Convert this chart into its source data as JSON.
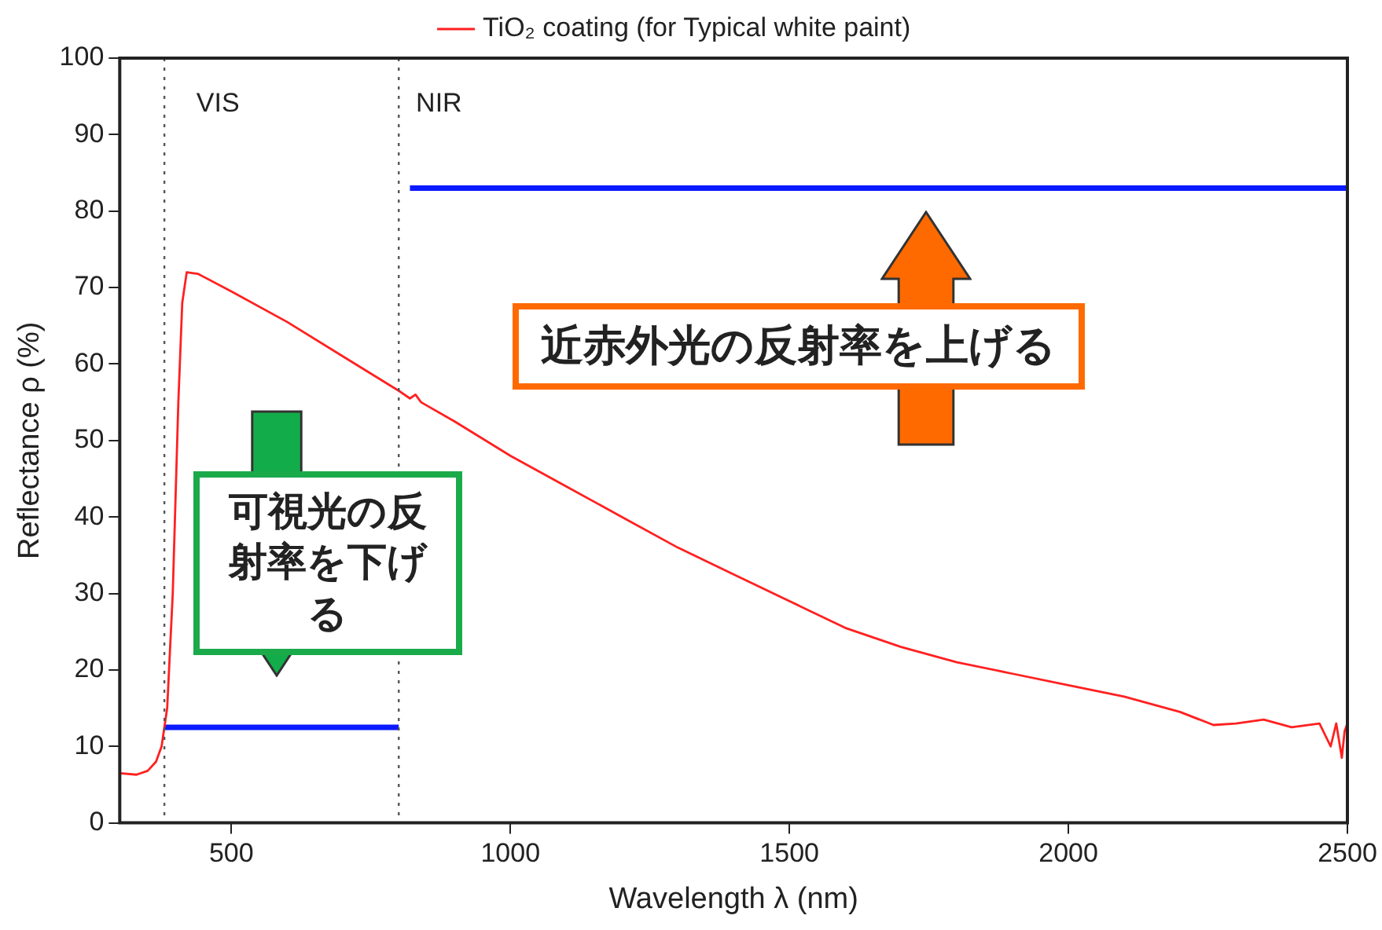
{
  "chart_data": {
    "type": "line",
    "xlabel": "Wavelength λ (nm)",
    "ylabel": "Reflectance ρ (%)",
    "xlim": [
      300,
      2500
    ],
    "xticks": [
      500,
      1000,
      1500,
      2000,
      2500
    ],
    "ylim": [
      0,
      100
    ],
    "yticks": [
      0,
      10,
      20,
      30,
      40,
      50,
      60,
      70,
      80,
      90,
      100
    ],
    "grid": false,
    "legend": "top",
    "marker": "none",
    "line_style": "solid",
    "series": [
      {
        "name": "TiO₂ coating (for Typical white paint)",
        "color": "#ff2020",
        "x": [
          300,
          330,
          350,
          365,
          375,
          385,
          395,
          405,
          412,
          420,
          440,
          500,
          600,
          700,
          800,
          820,
          830,
          840,
          900,
          1000,
          1100,
          1200,
          1300,
          1400,
          1500,
          1600,
          1700,
          1800,
          1900,
          2000,
          2100,
          2200,
          2260,
          2300,
          2350,
          2400,
          2450,
          2470,
          2480,
          2490,
          2495,
          2500
        ],
        "values": [
          6.5,
          6.3,
          6.8,
          8,
          10,
          15,
          30,
          55,
          68,
          72,
          71.8,
          69.5,
          65.5,
          61,
          56.5,
          55.5,
          56,
          55,
          52.5,
          48,
          44,
          40,
          36,
          32.5,
          29,
          25.5,
          23,
          21,
          19.5,
          18,
          16.5,
          14.5,
          12.8,
          13,
          13.5,
          12.5,
          13,
          10,
          13,
          8.5,
          12,
          13
        ]
      },
      {
        "color": "#0a1aff",
        "x": [
          380,
          800
        ],
        "values": [
          12.5,
          12.5
        ]
      },
      {
        "color": "#0a1aff",
        "x": [
          820,
          2500
        ],
        "values": [
          83,
          83
        ]
      }
    ],
    "ref_lines": [
      {
        "axis": "x",
        "value": 380,
        "line_style": "dotted",
        "color": "#555555"
      },
      {
        "axis": "x",
        "value": 800,
        "line_style": "dotted",
        "color": "#555555"
      }
    ],
    "annotations": [
      "VIS",
      "NIR",
      "可視光の反射率を下げる",
      "近赤外光の反射率を上げる"
    ]
  }
}
